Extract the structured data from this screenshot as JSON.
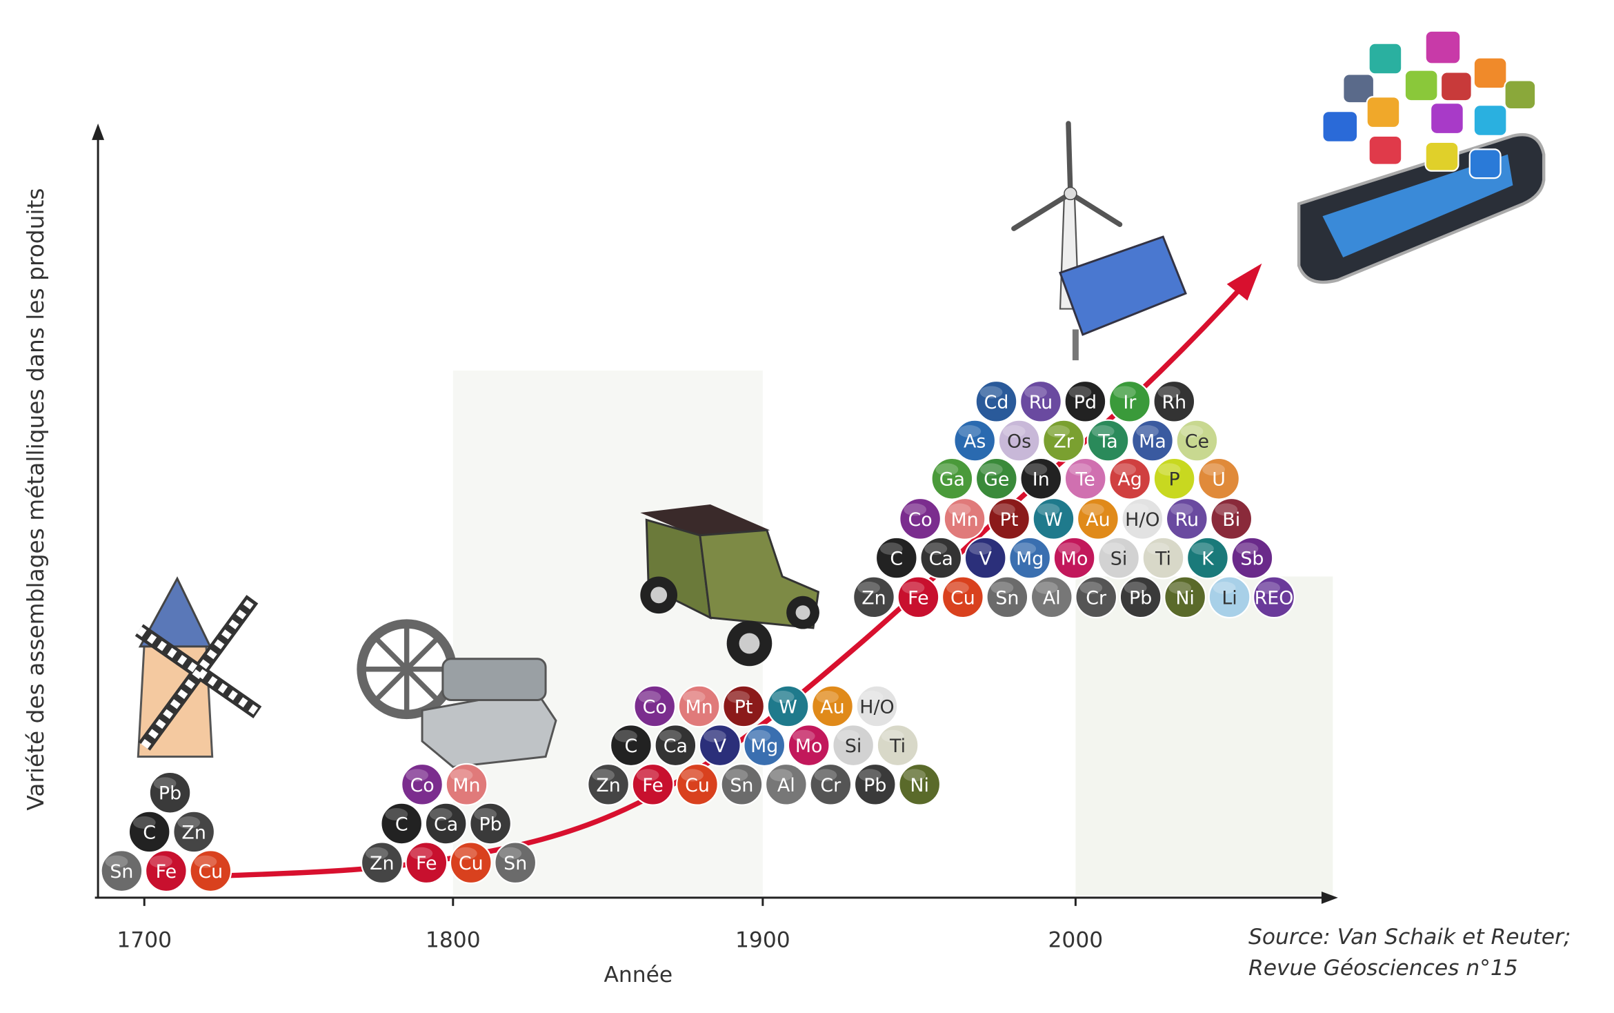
{
  "y_axis_label": "Variété des assemblages métalliques dans les produits",
  "x_axis_label": "Année",
  "x_ticks": [
    "1700",
    "1800",
    "1900",
    "2000"
  ],
  "source": [
    "Source: Van Schaik et Reuter;",
    "Revue Géosciences n°15"
  ],
  "groups": [
    {
      "rows": [
        [
          "Sn",
          "Fe",
          "Cu"
        ],
        [
          "C",
          "Zn"
        ],
        [
          "Pb"
        ]
      ]
    },
    {
      "rows": [
        [
          "Zn",
          "Fe",
          "Cu",
          "Sn"
        ],
        [
          "C",
          "Ca",
          "Pb"
        ],
        [
          "Co",
          "Mn"
        ]
      ]
    },
    {
      "rows": [
        [
          "Zn",
          "Fe",
          "Cu",
          "Sn",
          "Al",
          "Cr",
          "Pb",
          "Ni"
        ],
        [
          "C",
          "Ca",
          "V",
          "Mg",
          "Mo",
          "Si",
          "Ti"
        ],
        [
          "Co",
          "Mn",
          "Pt",
          "W",
          "Au",
          "H/O"
        ]
      ]
    },
    {
      "rows": [
        [
          "Zn",
          "Fe",
          "Cu",
          "Sn",
          "Al",
          "Cr",
          "Pb",
          "Ni",
          "Li",
          "REO"
        ],
        [
          "C",
          "Ca",
          "V",
          "Mg",
          "Mo",
          "Si",
          "Ti",
          "K",
          "Sb"
        ],
        [
          "Co",
          "Mn",
          "Pt",
          "W",
          "Au",
          "H/O",
          "Ru",
          "Bi"
        ],
        [
          "Ga",
          "Ge",
          "In",
          "Te",
          "Ag",
          "P",
          "U"
        ],
        [
          "As",
          "Os",
          "Zr",
          "Ta",
          "Ma",
          "Ce"
        ],
        [
          "Cd",
          "Ru",
          "Pd",
          "Ir",
          "Rh"
        ]
      ]
    }
  ],
  "element_colors": {
    "Sn": "#6b6b6b",
    "Fe": "#c8102e",
    "Cu": "#d9411e",
    "C": "#222222",
    "Zn": "#454545",
    "Pb": "#3a3a3a",
    "Co": "#7b2d8e",
    "Mn": "#e07a7a",
    "Ca": "#333333",
    "Al": "#777777",
    "Cr": "#555555",
    "Ni": "#5a6a2a",
    "V": "#2b2f7a",
    "Mg": "#3a6fb0",
    "Mo": "#c2185b",
    "Si": "#d2d2d2",
    "Ti": "#d8d8c8",
    "Pt": "#8b1a1a",
    "W": "#1f7a8c",
    "Au": "#e08a1a",
    "H/O": "#e2e2e2",
    "Li": "#a8d0e8",
    "REO": "#6a3a9a",
    "K": "#1a7a7a",
    "Sb": "#6a2a8a",
    "Ru": "#6a4aa0",
    "Bi": "#8a2a3a",
    "Ga": "#4a9a3a",
    "Ge": "#3a8a3a",
    "In": "#222222",
    "Te": "#d070b0",
    "Ag": "#d04040",
    "P": "#c8d820",
    "U": "#e08a3a",
    "As": "#2a6ab0",
    "Os": "#c8b8d8",
    "Zr": "#7aa030",
    "Ta": "#2a8a5a",
    "Ma": "#3a5aa0",
    "Ce": "#c8d890",
    "Cd": "#2a5a9a",
    "Pd": "#222222",
    "Ir": "#3a9a3a",
    "Rh": "#333333"
  }
}
